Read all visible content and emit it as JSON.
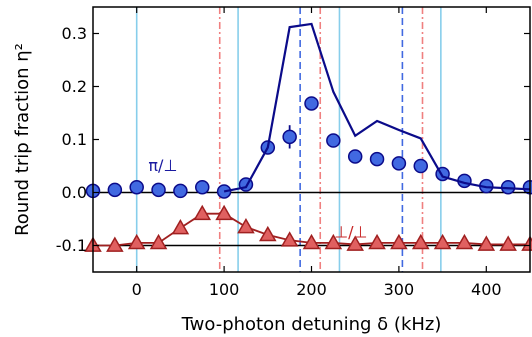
{
  "chart_data": {
    "type": "scatter",
    "xlabel": "Two-photon detuning δ (kHz)",
    "ylabel": "Round trip fraction η²",
    "xlim": [
      -50,
      450
    ],
    "ylim": [
      -0.15,
      0.35
    ],
    "xticks": [
      {
        "value": 0,
        "label": "0"
      },
      {
        "value": 100,
        "label": "100"
      },
      {
        "value": 200,
        "label": "200"
      },
      {
        "value": 300,
        "label": "300"
      },
      {
        "value": 400,
        "label": "400"
      }
    ],
    "yticks": [
      {
        "value": -0.1,
        "label": "-0.1"
      },
      {
        "value": 0.0,
        "label": "0.0"
      },
      {
        "value": 0.1,
        "label": "0.1"
      },
      {
        "value": 0.2,
        "label": "0.2"
      },
      {
        "value": 0.3,
        "label": "0.3"
      }
    ],
    "grid": false,
    "reference_lines": [
      {
        "y": 0.0,
        "color": "#000000"
      },
      {
        "y": -0.1,
        "color": "#000000"
      }
    ],
    "vlines": [
      {
        "x": 0,
        "color": "#87ceeb",
        "style": "solid"
      },
      {
        "x": 116,
        "color": "#87ceeb",
        "style": "solid"
      },
      {
        "x": 232,
        "color": "#87ceeb",
        "style": "solid"
      },
      {
        "x": 348,
        "color": "#87ceeb",
        "style": "solid"
      },
      {
        "x": 187,
        "color": "#4169e1",
        "style": "dashed"
      },
      {
        "x": 304,
        "color": "#4169e1",
        "style": "dashed"
      },
      {
        "x": 95,
        "color": "#f08080",
        "style": "dashdot"
      },
      {
        "x": 210,
        "color": "#f08080",
        "style": "dashdot"
      },
      {
        "x": 327,
        "color": "#f08080",
        "style": "dashdot"
      }
    ],
    "annotations": [
      {
        "text": "π/⊥",
        "x": 30,
        "y": 0.05,
        "color": "#1a1aa0"
      },
      {
        "text": "⊥/⊥",
        "x": 245,
        "y": -0.075,
        "color": "#c82828"
      }
    ],
    "series": [
      {
        "marker": "circle",
        "color": "#4169e1",
        "edge_color": "#0b0b8a",
        "x": [
          -50,
          -25,
          0,
          25,
          50,
          75,
          100,
          125,
          150,
          175,
          200,
          225,
          250,
          275,
          300,
          325,
          350,
          375,
          400,
          425,
          450
        ],
        "y": [
          0.003,
          0.005,
          0.01,
          0.005,
          0.003,
          0.01,
          0.002,
          0.015,
          0.085,
          0.105,
          0.168,
          0.098,
          0.068,
          0.063,
          0.055,
          0.05,
          0.035,
          0.022,
          0.012,
          0.01,
          0.01
        ],
        "errors": {
          "175": 0.022
        }
      },
      {
        "marker": "line",
        "color": "#0b0b8a",
        "x": [
          100,
          125,
          150,
          175,
          200,
          225,
          250,
          275,
          300,
          325,
          350,
          375,
          400,
          425,
          450
        ],
        "y": [
          0.002,
          0.01,
          0.085,
          0.312,
          0.318,
          0.19,
          0.107,
          0.135,
          0.118,
          0.102,
          0.03,
          0.018,
          0.01,
          0.008,
          0.006
        ]
      },
      {
        "marker": "triangle",
        "color": "#e06060",
        "edge_color": "#a02020",
        "connected": true,
        "x": [
          -50,
          -25,
          0,
          25,
          50,
          75,
          100,
          125,
          150,
          175,
          200,
          225,
          250,
          275,
          300,
          325,
          350,
          375,
          400,
          425,
          450
        ],
        "y": [
          -0.1,
          -0.1,
          -0.095,
          -0.095,
          -0.067,
          -0.04,
          -0.04,
          -0.065,
          -0.08,
          -0.09,
          -0.095,
          -0.095,
          -0.098,
          -0.095,
          -0.095,
          -0.095,
          -0.095,
          -0.095,
          -0.098,
          -0.098,
          -0.098
        ]
      }
    ]
  }
}
